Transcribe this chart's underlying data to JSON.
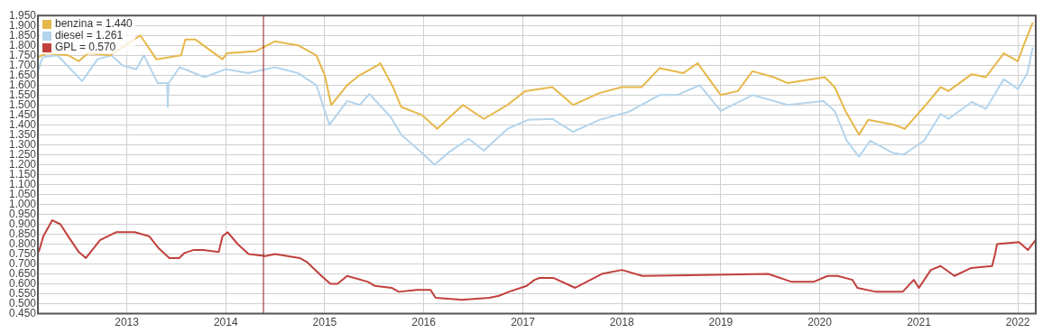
{
  "chart_data": {
    "type": "line",
    "xlim": [
      "2012-02-08",
      "2022-03-08"
    ],
    "xticks": [
      "2013",
      "2014",
      "2015",
      "2016",
      "2017",
      "2018",
      "2019",
      "2020",
      "2021",
      "2022"
    ],
    "ylim": [
      0.45,
      1.95
    ],
    "yticks": [
      {
        "value": 0.45,
        "label": "0.450"
      },
      {
        "value": 0.5,
        "label": "0.500"
      },
      {
        "value": 0.55,
        "label": "0.550"
      },
      {
        "value": 0.6,
        "label": "0.600"
      },
      {
        "value": 0.65,
        "label": "0.650"
      },
      {
        "value": 0.7,
        "label": "0.700"
      },
      {
        "value": 0.75,
        "label": "0.750"
      },
      {
        "value": 0.8,
        "label": "0.800"
      },
      {
        "value": 0.85,
        "label": "0.850"
      },
      {
        "value": 0.9,
        "label": "0.900"
      },
      {
        "value": 0.95,
        "label": "0.950"
      },
      {
        "value": 1.0,
        "label": "1.000"
      },
      {
        "value": 1.05,
        "label": "1.050"
      },
      {
        "value": 1.1,
        "label": "1.100"
      },
      {
        "value": 1.15,
        "label": "1.150"
      },
      {
        "value": 1.2,
        "label": "1.200"
      },
      {
        "value": 1.25,
        "label": "1.250"
      },
      {
        "value": 1.3,
        "label": "1.300"
      },
      {
        "value": 1.35,
        "label": "1.350"
      },
      {
        "value": 1.4,
        "label": "1.400"
      },
      {
        "value": 1.45,
        "label": "1.450"
      },
      {
        "value": 1.5,
        "label": "1.500"
      },
      {
        "value": 1.55,
        "label": "1.550"
      },
      {
        "value": 1.6,
        "label": "1.600"
      },
      {
        "value": 1.65,
        "label": "1.650"
      },
      {
        "value": 1.7,
        "label": "1.700"
      },
      {
        "value": 1.75,
        "label": "1.750"
      },
      {
        "value": 1.8,
        "label": "1.800"
      },
      {
        "value": 1.85,
        "label": "1.850"
      },
      {
        "value": 1.9,
        "label": "1.900"
      },
      {
        "value": 1.95,
        "label": "1.950"
      }
    ],
    "grid": true,
    "legend": "top left",
    "marker": "none",
    "line_style": "solid",
    "ref_lines": [
      {
        "axis": "x",
        "value": "2014-05-20",
        "color": "#8b1a1a"
      }
    ],
    "series": [
      {
        "name": "benzina = 1.440",
        "color": "#e6b84a",
        "x": [
          "2012-02-08",
          "2012-03-10",
          "2012-05-30",
          "2012-07-08",
          "2012-08-10",
          "2012-11-01",
          "2013-02-20",
          "2013-04-20",
          "2013-07-20",
          "2013-08-05",
          "2013-09-10",
          "2013-12-20",
          "2014-01-05",
          "2014-04-20",
          "2014-05-20",
          "2014-07-01",
          "2014-08-10",
          "2014-09-25",
          "2014-12-01",
          "2015-01-01",
          "2015-01-25",
          "2015-03-25",
          "2015-05-10",
          "2015-07-15",
          "2015-07-25",
          "2015-09-10",
          "2015-10-10",
          "2015-12-25",
          "2016-02-20",
          "2016-05-25",
          "2016-08-10",
          "2016-11-05",
          "2017-01-10",
          "2017-04-20",
          "2017-07-05",
          "2017-10-10",
          "2018-01-01",
          "2018-03-15",
          "2018-05-20",
          "2018-08-15",
          "2018-10-08",
          "2019-01-01",
          "2019-03-05",
          "2019-04-28",
          "2019-07-15",
          "2019-09-05",
          "2020-01-20",
          "2020-02-25",
          "2020-04-05",
          "2020-05-25",
          "2020-06-28",
          "2020-10-01",
          "2020-11-10",
          "2021-01-20",
          "2021-03-22",
          "2021-04-20",
          "2021-07-15",
          "2021-09-05",
          "2021-11-10",
          "2022-01-01",
          "2022-01-25",
          "2022-02-25"
        ],
        "values": [
          1.74,
          1.76,
          1.75,
          1.72,
          1.76,
          1.75,
          1.85,
          1.73,
          1.75,
          1.83,
          1.83,
          1.73,
          1.76,
          1.77,
          1.79,
          1.82,
          1.81,
          1.8,
          1.75,
          1.65,
          1.5,
          1.6,
          1.65,
          1.7,
          1.71,
          1.59,
          1.49,
          1.45,
          1.38,
          1.5,
          1.43,
          1.5,
          1.57,
          1.59,
          1.5,
          1.56,
          1.59,
          1.59,
          1.685,
          1.66,
          1.71,
          1.55,
          1.57,
          1.67,
          1.64,
          1.61,
          1.64,
          1.59,
          1.47,
          1.35,
          1.425,
          1.4,
          1.38,
          1.49,
          1.59,
          1.57,
          1.655,
          1.64,
          1.76,
          1.72,
          1.81,
          1.915
        ]
      },
      {
        "name": "diesel = 1.261",
        "color": "#b3d4ec",
        "x": [
          "2012-02-08",
          "2012-02-25",
          "2012-04-20",
          "2012-05-25",
          "2012-07-20",
          "2012-09-15",
          "2012-11-05",
          "2012-12-15",
          "2013-02-05",
          "2013-03-05",
          "2013-04-25",
          "2013-05-30",
          "2013-06-01",
          "2013-06-04",
          "2013-07-15",
          "2013-10-15",
          "2014-01-01",
          "2014-03-25",
          "2014-07-01",
          "2014-09-25",
          "2014-12-01",
          "2015-01-18",
          "2015-03-25",
          "2015-05-10",
          "2015-06-15",
          "2015-09-01",
          "2015-10-10",
          "2015-12-25",
          "2016-02-10",
          "2016-04-01",
          "2016-06-15",
          "2016-08-10",
          "2016-11-05",
          "2017-01-20",
          "2017-04-20",
          "2017-07-05",
          "2017-10-10",
          "2018-01-25",
          "2018-05-20",
          "2018-07-25",
          "2018-10-15",
          "2019-01-01",
          "2019-04-28",
          "2019-09-05",
          "2020-01-15",
          "2020-02-25",
          "2020-04-10",
          "2020-05-25",
          "2020-07-05",
          "2020-09-25",
          "2020-11-05",
          "2021-01-20",
          "2021-03-22",
          "2021-04-20",
          "2021-07-15",
          "2021-09-05",
          "2021-11-10",
          "2022-01-01",
          "2022-02-05",
          "2022-02-25"
        ],
        "values": [
          1.67,
          1.74,
          1.75,
          1.7,
          1.62,
          1.73,
          1.75,
          1.7,
          1.68,
          1.75,
          1.61,
          1.61,
          1.49,
          1.61,
          1.69,
          1.64,
          1.68,
          1.66,
          1.69,
          1.66,
          1.6,
          1.4,
          1.52,
          1.5,
          1.555,
          1.44,
          1.35,
          1.26,
          1.2,
          1.26,
          1.33,
          1.27,
          1.38,
          1.425,
          1.43,
          1.365,
          1.425,
          1.465,
          1.55,
          1.55,
          1.6,
          1.47,
          1.55,
          1.5,
          1.52,
          1.47,
          1.32,
          1.24,
          1.32,
          1.26,
          1.25,
          1.32,
          1.455,
          1.43,
          1.515,
          1.48,
          1.63,
          1.58,
          1.66,
          1.79
        ]
      },
      {
        "name": "GPL = 0.570",
        "color": "#c0403c",
        "x": [
          "2012-02-11",
          "2012-02-28",
          "2012-04-01",
          "2012-05-01",
          "2012-06-03",
          "2012-07-08",
          "2012-08-03",
          "2012-09-24",
          "2012-11-22",
          "2013-01-30",
          "2013-03-24",
          "2013-04-28",
          "2013-06-07",
          "2013-07-13",
          "2013-08-01",
          "2013-09-03",
          "2013-10-09",
          "2013-12-06",
          "2013-12-20",
          "2014-01-08",
          "2014-02-14",
          "2014-03-26",
          "2014-05-27",
          "2014-07-02",
          "2014-10-01",
          "2014-10-27",
          "2014-12-20",
          "2015-01-22",
          "2015-02-17",
          "2015-03-25",
          "2015-06-10",
          "2015-07-05",
          "2015-09-05",
          "2015-10-01",
          "2015-12-06",
          "2016-01-26",
          "2016-02-14",
          "2016-05-19",
          "2016-08-30",
          "2016-10-05",
          "2016-11-10",
          "2017-01-15",
          "2017-02-13",
          "2017-03-03",
          "2017-04-23",
          "2017-07-13",
          "2017-10-19",
          "2018-01-01",
          "2018-03-18",
          "2019-06-25",
          "2019-09-20",
          "2019-12-09",
          "2020-01-30",
          "2020-03-07",
          "2020-05-01",
          "2020-05-19",
          "2020-07-27",
          "2020-11-02",
          "2020-12-13",
          "2021-01-01",
          "2021-02-14",
          "2021-03-22",
          "2021-05-12",
          "2021-07-13",
          "2021-09-28",
          "2021-10-09",
          "2021-10-16",
          "2022-01-05",
          "2022-02-07",
          "2022-03-07"
        ],
        "values": [
          0.76,
          0.84,
          0.92,
          0.9,
          0.83,
          0.76,
          0.73,
          0.82,
          0.86,
          0.86,
          0.84,
          0.78,
          0.73,
          0.73,
          0.755,
          0.77,
          0.77,
          0.76,
          0.84,
          0.86,
          0.8,
          0.75,
          0.74,
          0.75,
          0.73,
          0.71,
          0.64,
          0.6,
          0.6,
          0.64,
          0.61,
          0.59,
          0.58,
          0.56,
          0.57,
          0.57,
          0.53,
          0.52,
          0.53,
          0.54,
          0.56,
          0.59,
          0.62,
          0.63,
          0.63,
          0.58,
          0.65,
          0.67,
          0.64,
          0.65,
          0.61,
          0.61,
          0.64,
          0.64,
          0.62,
          0.58,
          0.56,
          0.56,
          0.62,
          0.58,
          0.67,
          0.69,
          0.64,
          0.68,
          0.69,
          0.75,
          0.8,
          0.81,
          0.77,
          0.82
        ]
      }
    ]
  }
}
